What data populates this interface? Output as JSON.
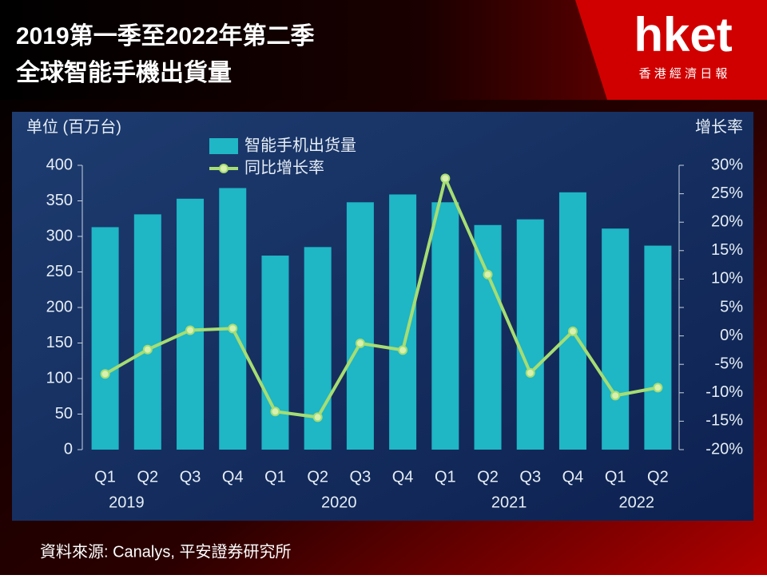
{
  "header": {
    "title_line1": "2019第一季至2022年第二季",
    "title_line2": "全球智能手機出貨量",
    "logo": "hket",
    "logo_sub": "香 港 經 濟 日 報"
  },
  "chart_data": {
    "type": "bar",
    "y_label": "单位 (百万台)",
    "y2_label": "增长率",
    "categories": [
      "Q1",
      "Q2",
      "Q3",
      "Q4",
      "Q1",
      "Q2",
      "Q3",
      "Q4",
      "Q1",
      "Q2",
      "Q3",
      "Q4",
      "Q1",
      "Q2"
    ],
    "years": [
      "2019",
      "2020",
      "2021",
      "2022"
    ],
    "series": [
      {
        "name": "智能手机出货量",
        "type": "bar",
        "color": "#1fb6c6",
        "values": [
          313,
          331,
          353,
          368,
          273,
          285,
          348,
          359,
          348,
          316,
          324,
          362,
          311,
          287
        ]
      },
      {
        "name": "同比增长率",
        "type": "line",
        "axis": "y2",
        "color": "#a6dd72",
        "values": [
          -6.7,
          -2.4,
          1.0,
          1.3,
          -13.3,
          -14.3,
          -1.3,
          -2.5,
          27.7,
          10.8,
          -6.5,
          0.8,
          -10.5,
          -9.1
        ]
      }
    ],
    "ylim": [
      0,
      400
    ],
    "yticks": [
      0,
      50,
      100,
      150,
      200,
      250,
      300,
      350,
      400
    ],
    "y2lim": [
      -20,
      30
    ],
    "y2ticks": [
      {
        "value": -20,
        "label": "-20%"
      },
      {
        "value": -15,
        "label": "-15%"
      },
      {
        "value": -10,
        "label": "-10%"
      },
      {
        "value": -5,
        "label": "-5%"
      },
      {
        "value": 0,
        "label": "0%"
      },
      {
        "value": 5,
        "label": "5%"
      },
      {
        "value": 10,
        "label": "10%"
      },
      {
        "value": 15,
        "label": "15%"
      },
      {
        "value": 20,
        "label": "20%"
      },
      {
        "value": 25,
        "label": "25%"
      },
      {
        "value": 30,
        "label": "30%"
      }
    ]
  },
  "source": "資料來源: Canalys, 平安證券研究所"
}
